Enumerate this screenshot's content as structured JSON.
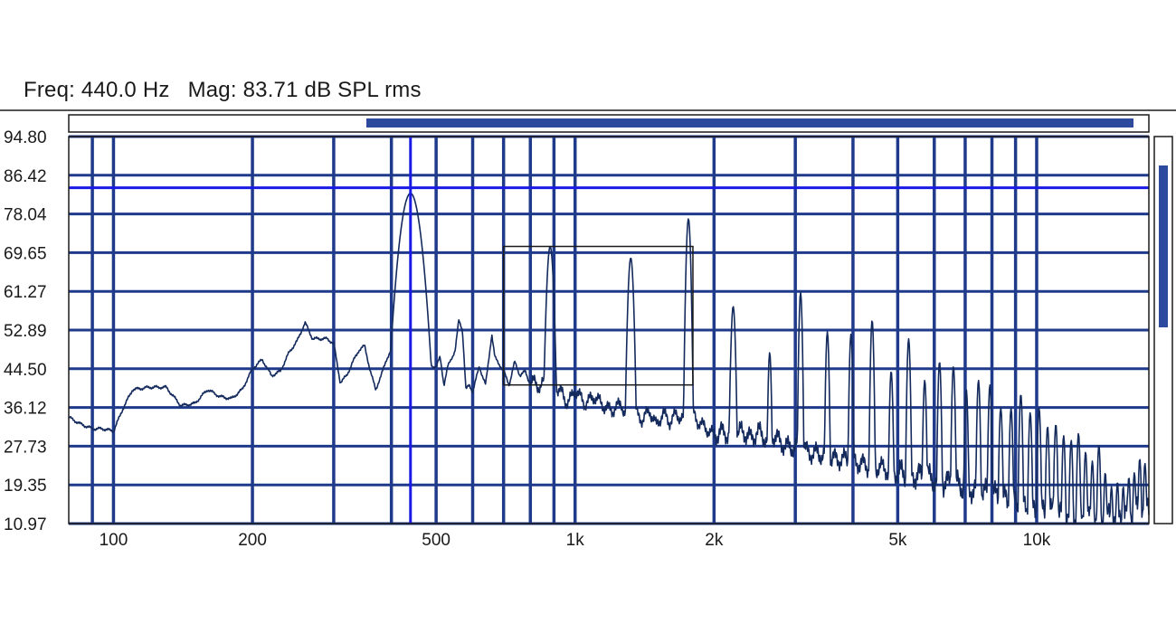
{
  "readout": {
    "freq_label": "Freq:",
    "freq_value": "440.0 Hz",
    "mag_label": "Mag:",
    "mag_value": "83.71 dB SPL rms"
  },
  "colors": {
    "grid": "#1f3a8a",
    "cursor": "#1a1ae6",
    "trace": "#142a5c",
    "scroll_thumb": "#2d4a9e"
  },
  "chart_data": {
    "type": "line",
    "xscale": "log",
    "xlim": [
      80,
      17500
    ],
    "ylim": [
      10.97,
      94.8
    ],
    "yticks": [
      10.97,
      19.35,
      27.73,
      36.12,
      44.5,
      52.89,
      61.27,
      69.65,
      78.04,
      86.42,
      94.8
    ],
    "ytick_labels": [
      "10.97",
      "19.35",
      "27.73",
      "36.12",
      "44.50",
      "52.89",
      "61.27",
      "69.65",
      "78.04",
      "86.42",
      "94.80"
    ],
    "xtick_labels": [
      {
        "value": 100,
        "label": "100"
      },
      {
        "value": 200,
        "label": "200"
      },
      {
        "value": 500,
        "label": "500"
      },
      {
        "value": 1000,
        "label": "1k"
      },
      {
        "value": 2000,
        "label": "2k"
      },
      {
        "value": 5000,
        "label": "5k"
      },
      {
        "value": 10000,
        "label": "10k"
      }
    ],
    "vertical_grid": [
      90,
      100,
      200,
      300,
      400,
      500,
      600,
      700,
      800,
      900,
      1000,
      2000,
      3000,
      4000,
      5000,
      6000,
      7000,
      8000,
      9000,
      10000
    ],
    "cursor": {
      "freq": 440,
      "mag": 83.71
    },
    "selection": {
      "x": [
        700,
        1800
      ],
      "y": [
        41,
        71
      ]
    },
    "baseline": [
      [
        80,
        34
      ],
      [
        85,
        32.5
      ],
      [
        90,
        31.5
      ],
      [
        95,
        31.5
      ],
      [
        100,
        31
      ],
      [
        105,
        36
      ],
      [
        110,
        40
      ],
      [
        120,
        40.5
      ],
      [
        130,
        40.5
      ],
      [
        140,
        36.5
      ],
      [
        150,
        37
      ],
      [
        160,
        40
      ],
      [
        170,
        38.5
      ],
      [
        180,
        38
      ],
      [
        190,
        40
      ],
      [
        200,
        44.5
      ],
      [
        210,
        46.5
      ],
      [
        220,
        43
      ],
      [
        230,
        44
      ],
      [
        240,
        48
      ],
      [
        250,
        50.5
      ],
      [
        260,
        54.5
      ],
      [
        270,
        51
      ],
      [
        290,
        51
      ],
      [
        300,
        50
      ],
      [
        310,
        41.5
      ],
      [
        320,
        43
      ],
      [
        330,
        46
      ],
      [
        340,
        48.5
      ],
      [
        350,
        49.5
      ],
      [
        360,
        44
      ],
      [
        370,
        40
      ],
      [
        380,
        43
      ],
      [
        390,
        46.5
      ],
      [
        400,
        48.5
      ],
      [
        410,
        45
      ],
      [
        420,
        44.5
      ],
      [
        430,
        44
      ],
      [
        445,
        44.5
      ],
      [
        460,
        47
      ],
      [
        470,
        43
      ],
      [
        480,
        46
      ],
      [
        490,
        45
      ],
      [
        500,
        45
      ],
      [
        510,
        47
      ],
      [
        520,
        41
      ],
      [
        530,
        45
      ],
      [
        550,
        48.5
      ],
      [
        560,
        55
      ],
      [
        570,
        53
      ],
      [
        580,
        40
      ],
      [
        590,
        41
      ],
      [
        600,
        39.5
      ],
      [
        620,
        45
      ],
      [
        640,
        41
      ],
      [
        660,
        52
      ],
      [
        670,
        47
      ],
      [
        680,
        46
      ],
      [
        700,
        44
      ],
      [
        720,
        41
      ],
      [
        740,
        46
      ],
      [
        760,
        43
      ],
      [
        780,
        44
      ],
      [
        800,
        41
      ],
      [
        820,
        42
      ],
      [
        840,
        40
      ],
      [
        860,
        42
      ],
      [
        880,
        41
      ],
      [
        920,
        40
      ],
      [
        940,
        39
      ],
      [
        960,
        37
      ],
      [
        980,
        38
      ],
      [
        1000,
        40
      ],
      [
        1050,
        37
      ],
      [
        1100,
        38.5
      ],
      [
        1150,
        36.5
      ],
      [
        1200,
        35.5
      ],
      [
        1260,
        37
      ],
      [
        1300,
        33
      ],
      [
        1350,
        35
      ],
      [
        1400,
        33.5
      ],
      [
        1450,
        35.5
      ],
      [
        1500,
        32
      ],
      [
        1550,
        35
      ],
      [
        1600,
        33
      ],
      [
        1650,
        34.5
      ],
      [
        1700,
        34
      ],
      [
        1750,
        32
      ],
      [
        1800,
        35
      ],
      [
        1850,
        33
      ],
      [
        1900,
        32
      ],
      [
        2000,
        30
      ],
      [
        2100,
        31
      ],
      [
        2200,
        29.5
      ],
      [
        2300,
        31
      ],
      [
        2400,
        29.5
      ],
      [
        2500,
        31
      ],
      [
        2600,
        29
      ],
      [
        2700,
        30
      ],
      [
        2800,
        28.5
      ],
      [
        2900,
        27.5
      ],
      [
        3000,
        27.5
      ],
      [
        3200,
        26.5
      ],
      [
        3400,
        26
      ],
      [
        3600,
        25
      ],
      [
        3800,
        25
      ],
      [
        4000,
        24.5
      ],
      [
        4300,
        23.5
      ],
      [
        4600,
        23
      ],
      [
        5000,
        22
      ],
      [
        5400,
        21.5
      ],
      [
        5800,
        21
      ],
      [
        6200,
        20
      ],
      [
        6600,
        19.5
      ],
      [
        7000,
        19
      ],
      [
        7500,
        18
      ],
      [
        8000,
        17
      ],
      [
        8500,
        16.5
      ],
      [
        9000,
        15.5
      ],
      [
        9500,
        14.5
      ],
      [
        10000,
        13.5
      ],
      [
        11000,
        13
      ],
      [
        12000,
        12.5
      ],
      [
        13000,
        12
      ],
      [
        14000,
        12
      ],
      [
        15000,
        12.5
      ],
      [
        16000,
        13
      ],
      [
        17000,
        14
      ],
      [
        17500,
        15
      ]
    ],
    "peaks": [
      {
        "f": 440,
        "mag": 82.5,
        "w": 0.018
      },
      {
        "f": 883,
        "mag": 71,
        "w": 0.006
      },
      {
        "f": 1320,
        "mag": 68.5,
        "w": 0.005
      },
      {
        "f": 1760,
        "mag": 77,
        "w": 0.004
      },
      {
        "f": 2200,
        "mag": 58,
        "w": 0.004
      },
      {
        "f": 2640,
        "mag": 48,
        "w": 0.003
      },
      {
        "f": 3080,
        "mag": 61,
        "w": 0.003
      },
      {
        "f": 3520,
        "mag": 52.5,
        "w": 0.003
      },
      {
        "f": 3960,
        "mag": 52,
        "w": 0.003
      },
      {
        "f": 4400,
        "mag": 55,
        "w": 0.003
      },
      {
        "f": 4840,
        "mag": 44,
        "w": 0.003
      },
      {
        "f": 5280,
        "mag": 51,
        "w": 0.003
      },
      {
        "f": 5720,
        "mag": 42,
        "w": 0.003
      },
      {
        "f": 6160,
        "mag": 46,
        "w": 0.003
      },
      {
        "f": 6600,
        "mag": 45,
        "w": 0.003
      },
      {
        "f": 7040,
        "mag": 40,
        "w": 0.003
      },
      {
        "f": 7480,
        "mag": 42,
        "w": 0.003
      },
      {
        "f": 7920,
        "mag": 41,
        "w": 0.003
      },
      {
        "f": 8360,
        "mag": 36,
        "w": 0.003
      },
      {
        "f": 8800,
        "mag": 36,
        "w": 0.003
      },
      {
        "f": 9240,
        "mag": 39,
        "w": 0.003
      },
      {
        "f": 9680,
        "mag": 35,
        "w": 0.003
      },
      {
        "f": 10120,
        "mag": 36,
        "w": 0.003
      },
      {
        "f": 10560,
        "mag": 32,
        "w": 0.003
      },
      {
        "f": 11000,
        "mag": 32.5,
        "w": 0.003
      },
      {
        "f": 11440,
        "mag": 30,
        "w": 0.003
      },
      {
        "f": 11880,
        "mag": 29,
        "w": 0.003
      },
      {
        "f": 12320,
        "mag": 30.5,
        "w": 0.003
      },
      {
        "f": 12760,
        "mag": 26.5,
        "w": 0.003
      },
      {
        "f": 13200,
        "mag": 24.5,
        "w": 0.003
      },
      {
        "f": 13640,
        "mag": 28,
        "w": 0.003
      },
      {
        "f": 14080,
        "mag": 22,
        "w": 0.003
      },
      {
        "f": 14520,
        "mag": 19,
        "w": 0.003
      },
      {
        "f": 14960,
        "mag": 20,
        "w": 0.003
      },
      {
        "f": 15400,
        "mag": 19,
        "w": 0.003
      },
      {
        "f": 15840,
        "mag": 21,
        "w": 0.003
      },
      {
        "f": 16280,
        "mag": 22,
        "w": 0.003
      },
      {
        "f": 16720,
        "mag": 25,
        "w": 0.003
      },
      {
        "f": 17160,
        "mag": 24,
        "w": 0.003
      }
    ]
  }
}
